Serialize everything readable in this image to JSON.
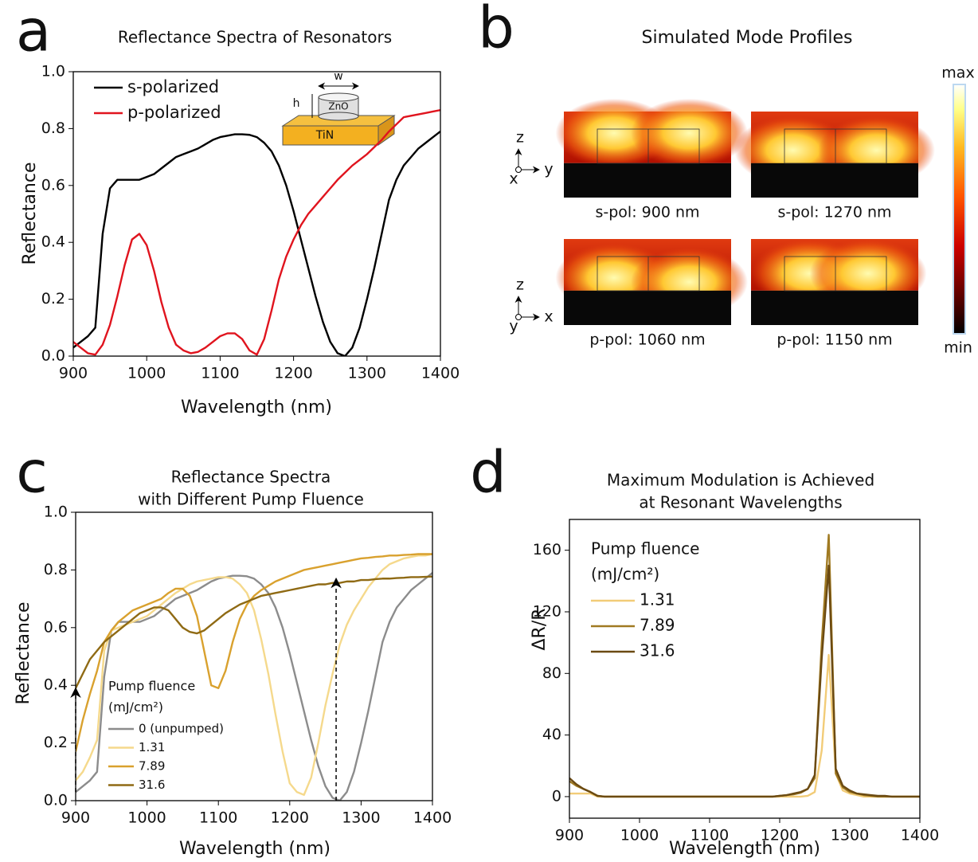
{
  "chart_data": [
    {
      "type": "line",
      "panel_label": "a",
      "title": "Reflectance Spectra of Resonators",
      "x_label": "Wavelength (nm)",
      "y_label": "Reflectance",
      "x": [
        900,
        910,
        920,
        930,
        940,
        950,
        960,
        970,
        980,
        990,
        1000,
        1010,
        1020,
        1030,
        1040,
        1050,
        1060,
        1070,
        1080,
        1090,
        1100,
        1110,
        1120,
        1130,
        1140,
        1150,
        1160,
        1170,
        1180,
        1190,
        1200,
        1210,
        1220,
        1230,
        1240,
        1250,
        1260,
        1270,
        1280,
        1290,
        1300,
        1310,
        1320,
        1330,
        1340,
        1350,
        1360,
        1370,
        1380,
        1390,
        1400
      ],
      "series": [
        {
          "name": "s-polarized",
          "color": "#000000",
          "values": [
            0.03,
            0.05,
            0.07,
            0.1,
            0.43,
            0.59,
            0.62,
            0.62,
            0.62,
            0.62,
            0.63,
            0.64,
            0.66,
            0.68,
            0.7,
            0.71,
            0.72,
            0.73,
            0.745,
            0.76,
            0.77,
            0.775,
            0.78,
            0.78,
            0.778,
            0.77,
            0.75,
            0.72,
            0.67,
            0.6,
            0.51,
            0.41,
            0.31,
            0.21,
            0.12,
            0.05,
            0.01,
            0.0,
            0.03,
            0.1,
            0.2,
            0.31,
            0.43,
            0.55,
            0.62,
            0.67,
            0.7,
            0.73,
            0.75,
            0.77,
            0.79
          ]
        },
        {
          "name": "p-polarized",
          "color": "#e0141e",
          "values": [
            0.05,
            0.03,
            0.01,
            0.005,
            0.04,
            0.11,
            0.21,
            0.32,
            0.41,
            0.43,
            0.39,
            0.3,
            0.19,
            0.1,
            0.04,
            0.02,
            0.01,
            0.015,
            0.03,
            0.05,
            0.07,
            0.08,
            0.08,
            0.06,
            0.02,
            0.005,
            0.06,
            0.16,
            0.27,
            0.35,
            0.41,
            0.46,
            0.5,
            0.53,
            0.56,
            0.59,
            0.62,
            0.645,
            0.67,
            0.69,
            0.71,
            0.735,
            0.76,
            0.79,
            0.815,
            0.84,
            0.845,
            0.85,
            0.855,
            0.86,
            0.865
          ]
        }
      ],
      "xlim": [
        900,
        1400
      ],
      "xticks": [
        900,
        1000,
        1100,
        1200,
        1300,
        1400
      ],
      "ylim": [
        0,
        1
      ],
      "yticks": [
        {
          "value": 0,
          "label": "0.0"
        },
        {
          "value": 0.2,
          "label": "0.2"
        },
        {
          "value": 0.4,
          "label": "0.4"
        },
        {
          "value": 0.6,
          "label": "0.6"
        },
        {
          "value": 0.8,
          "label": "0.8"
        },
        {
          "value": 1,
          "label": "1.0"
        }
      ],
      "legend": "upper left",
      "inset_labels": [
        "w",
        "h",
        "ZnO",
        "TiN"
      ]
    },
    {
      "type": "line",
      "panel_label": "c",
      "title": [
        "Reflectance Spectra",
        "with Different Pump Fluence"
      ],
      "x_label": "Wavelength (nm)",
      "y_label": "Reflectance",
      "x": [
        900,
        910,
        920,
        930,
        940,
        950,
        960,
        970,
        980,
        990,
        1000,
        1010,
        1020,
        1030,
        1040,
        1050,
        1060,
        1070,
        1080,
        1090,
        1100,
        1110,
        1120,
        1130,
        1140,
        1150,
        1160,
        1170,
        1180,
        1190,
        1200,
        1210,
        1220,
        1230,
        1240,
        1250,
        1260,
        1270,
        1280,
        1290,
        1300,
        1310,
        1320,
        1330,
        1340,
        1350,
        1360,
        1370,
        1380,
        1390,
        1400
      ],
      "series": [
        {
          "name": "0 (unpumped)",
          "color": "#8c8c8c",
          "values": [
            0.03,
            0.05,
            0.07,
            0.1,
            0.43,
            0.59,
            0.62,
            0.62,
            0.62,
            0.62,
            0.63,
            0.64,
            0.66,
            0.68,
            0.7,
            0.71,
            0.72,
            0.73,
            0.745,
            0.76,
            0.77,
            0.775,
            0.78,
            0.78,
            0.778,
            0.77,
            0.75,
            0.72,
            0.67,
            0.6,
            0.51,
            0.41,
            0.31,
            0.21,
            0.12,
            0.05,
            0.01,
            0.0,
            0.03,
            0.1,
            0.2,
            0.31,
            0.43,
            0.55,
            0.62,
            0.67,
            0.7,
            0.73,
            0.75,
            0.77,
            0.79
          ]
        },
        {
          "name": "1.31",
          "color": "#f5d98c",
          "values": [
            0.07,
            0.1,
            0.15,
            0.21,
            0.52,
            0.59,
            0.6,
            0.61,
            0.62,
            0.63,
            0.64,
            0.66,
            0.68,
            0.7,
            0.72,
            0.735,
            0.75,
            0.76,
            0.765,
            0.77,
            0.775,
            0.775,
            0.77,
            0.75,
            0.72,
            0.66,
            0.56,
            0.44,
            0.3,
            0.17,
            0.06,
            0.03,
            0.02,
            0.08,
            0.2,
            0.33,
            0.44,
            0.54,
            0.61,
            0.66,
            0.7,
            0.74,
            0.77,
            0.8,
            0.82,
            0.83,
            0.84,
            0.845,
            0.85,
            0.85,
            0.855
          ]
        },
        {
          "name": "7.89",
          "color": "#d9a12e",
          "values": [
            0.17,
            0.28,
            0.37,
            0.45,
            0.55,
            0.59,
            0.62,
            0.64,
            0.66,
            0.67,
            0.68,
            0.69,
            0.7,
            0.72,
            0.735,
            0.735,
            0.71,
            0.64,
            0.52,
            0.4,
            0.39,
            0.45,
            0.55,
            0.63,
            0.68,
            0.71,
            0.73,
            0.745,
            0.76,
            0.77,
            0.78,
            0.79,
            0.8,
            0.805,
            0.81,
            0.815,
            0.82,
            0.825,
            0.83,
            0.835,
            0.84,
            0.842,
            0.845,
            0.847,
            0.85,
            0.85,
            0.852,
            0.853,
            0.855,
            0.855,
            0.855
          ]
        },
        {
          "name": "31.6",
          "color": "#8f6a14",
          "values": [
            0.39,
            0.44,
            0.49,
            0.52,
            0.55,
            0.57,
            0.59,
            0.61,
            0.63,
            0.65,
            0.66,
            0.67,
            0.67,
            0.66,
            0.63,
            0.6,
            0.585,
            0.58,
            0.59,
            0.61,
            0.63,
            0.65,
            0.665,
            0.68,
            0.69,
            0.7,
            0.71,
            0.715,
            0.72,
            0.725,
            0.73,
            0.735,
            0.74,
            0.745,
            0.75,
            0.75,
            0.755,
            0.755,
            0.76,
            0.76,
            0.765,
            0.765,
            0.768,
            0.77,
            0.77,
            0.772,
            0.773,
            0.775,
            0.775,
            0.776,
            0.777
          ]
        }
      ],
      "xlim": [
        900,
        1400
      ],
      "xticks": [
        900,
        1000,
        1100,
        1200,
        1300,
        1400
      ],
      "ylim": [
        0,
        1
      ],
      "yticks": [
        {
          "value": 0,
          "label": "0.0"
        },
        {
          "value": 0.2,
          "label": "0.2"
        },
        {
          "value": 0.4,
          "label": "0.4"
        },
        {
          "value": 0.6,
          "label": "0.6"
        },
        {
          "value": 0.8,
          "label": "0.8"
        },
        {
          "value": 1,
          "label": "1.0"
        }
      ],
      "legend": "lower left",
      "legend_title": [
        "Pump fluence",
        "(mJ/cm²)"
      ],
      "arrows": [
        {
          "x": 900,
          "y": [
            0.03,
            0.39
          ]
        },
        {
          "x": 1265,
          "y": [
            0.0,
            0.77
          ]
        }
      ]
    },
    {
      "type": "line",
      "panel_label": "d",
      "title": [
        "Maximum Modulation is Achieved",
        "at Resonant Wavelengths"
      ],
      "x_label": "Wavelength (nm)",
      "y_label": "ΔR/R",
      "x": [
        900,
        910,
        920,
        930,
        940,
        950,
        960,
        970,
        980,
        990,
        1000,
        1010,
        1020,
        1030,
        1040,
        1050,
        1060,
        1070,
        1080,
        1090,
        1100,
        1110,
        1120,
        1130,
        1140,
        1150,
        1160,
        1170,
        1180,
        1190,
        1200,
        1210,
        1220,
        1230,
        1240,
        1250,
        1260,
        1270,
        1280,
        1290,
        1300,
        1310,
        1320,
        1330,
        1340,
        1350,
        1360,
        1370,
        1380,
        1390,
        1400
      ],
      "series": [
        {
          "name": "1.31",
          "color": "#f2cc78",
          "values": [
            2,
            2,
            2,
            2,
            0,
            0,
            0,
            0,
            0,
            0,
            0,
            0,
            0,
            0,
            0,
            0,
            0,
            0,
            0,
            0,
            0,
            0,
            0,
            0,
            0,
            0,
            0,
            0,
            0,
            0,
            0,
            0,
            0,
            0,
            0.5,
            3,
            30,
            92,
            15,
            4,
            2,
            1,
            0,
            0,
            0,
            0,
            0,
            0,
            0,
            0,
            0
          ]
        },
        {
          "name": "7.89",
          "color": "#a07a22",
          "values": [
            10,
            7,
            5,
            3,
            0.5,
            0,
            0,
            0,
            0,
            0,
            0,
            0,
            0,
            0,
            0,
            0,
            0,
            0,
            0,
            0,
            0,
            0,
            0,
            0,
            0,
            0,
            0,
            0,
            0,
            0,
            0.5,
            1,
            1.5,
            2.5,
            5,
            12,
            100,
            170,
            15,
            6,
            3,
            2,
            1,
            0.5,
            0,
            0,
            0,
            0,
            0,
            0,
            0
          ]
        },
        {
          "name": "31.6",
          "color": "#6b4a12",
          "values": [
            12,
            8,
            5,
            3,
            0.5,
            0,
            0,
            0,
            0,
            0,
            0,
            0,
            0,
            0,
            0,
            0,
            0,
            0,
            0,
            0,
            0,
            0,
            0,
            0,
            0,
            0,
            0,
            0,
            0,
            0,
            0.5,
            1,
            2,
            3,
            5,
            14,
            90,
            150,
            18,
            7,
            4,
            2,
            1.5,
            1,
            0.5,
            0.5,
            0,
            0,
            0,
            0,
            0
          ]
        }
      ],
      "xlim": [
        900,
        1400
      ],
      "xticks": [
        900,
        1000,
        1100,
        1200,
        1300,
        1400
      ],
      "ylim": [
        -14,
        180
      ],
      "yticks": [
        0,
        40,
        80,
        120,
        160
      ],
      "legend": "upper left",
      "legend_title": [
        "Pump fluence",
        "(mJ/cm²)"
      ]
    }
  ],
  "mode_profiles": {
    "panel_label": "b",
    "title": "Simulated Mode Profiles",
    "profiles": [
      {
        "label": "s-pol: 900 nm"
      },
      {
        "label": "s-pol: 1270 nm"
      },
      {
        "label": "p-pol: 1060 nm"
      },
      {
        "label": "p-pol: 1150 nm"
      }
    ],
    "axes_labels": [
      [
        "z",
        "x",
        "y"
      ],
      [
        "z",
        "y",
        "x"
      ]
    ],
    "colorbar": {
      "max": "max",
      "min": "min"
    }
  }
}
